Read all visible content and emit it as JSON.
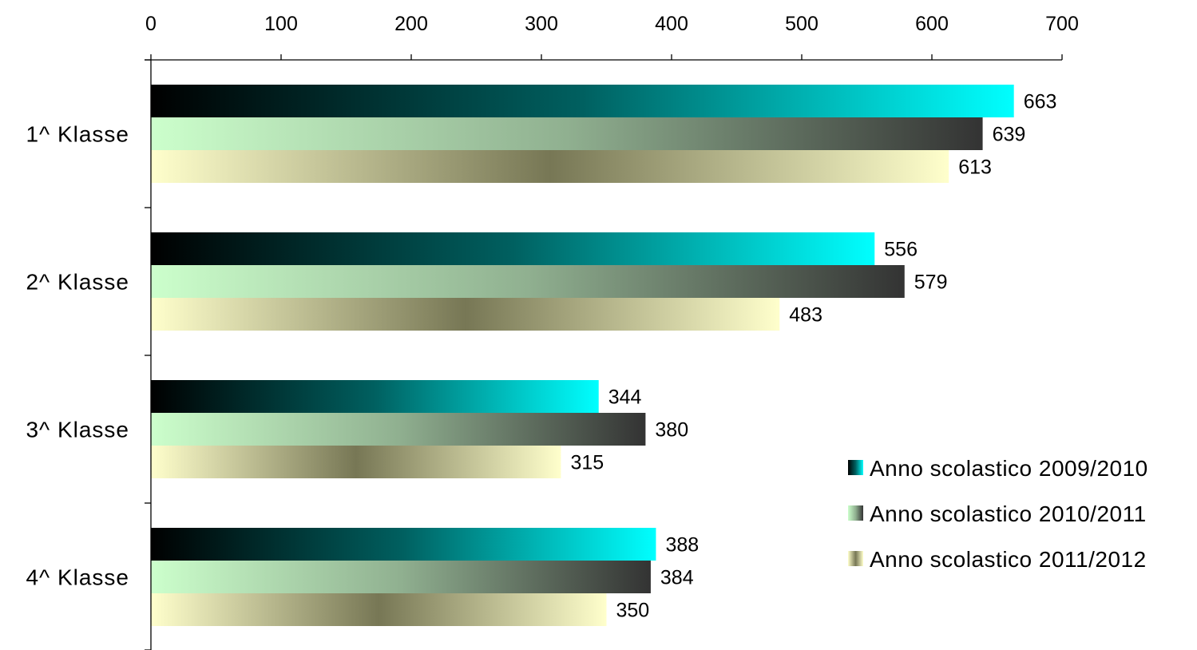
{
  "chart_data": {
    "type": "bar",
    "orientation": "horizontal",
    "x_axis_position": "top",
    "xlim": [
      0,
      700
    ],
    "x_ticks": [
      "0",
      "100",
      "200",
      "300",
      "400",
      "500",
      "600",
      "700"
    ],
    "grid": false,
    "legend_position": "right",
    "categories": [
      "1^ Klasse",
      "2^ Klasse",
      "3^ Klasse",
      "4^ Klasse"
    ],
    "series": [
      {
        "name": "Anno scolastico 2009/2010",
        "values": [
          663,
          556,
          344,
          388
        ],
        "colors": [
          "#000000",
          "#006060",
          "#00ffff"
        ]
      },
      {
        "name": "Anno scolastico 2010/2011",
        "values": [
          639,
          579,
          380,
          384
        ],
        "colors": [
          "#ccffcc",
          "#90b090",
          "#333333"
        ]
      },
      {
        "name": "Anno scolastico 2011/2012",
        "values": [
          613,
          483,
          315,
          350
        ],
        "colors": [
          "#ffffcc",
          "#777755",
          "#ffffcc"
        ]
      }
    ],
    "data_labels": [
      [
        "663",
        "556",
        "344",
        "388"
      ],
      [
        "639",
        "579",
        "380",
        "384"
      ],
      [
        "613",
        "483",
        "315",
        "350"
      ]
    ]
  }
}
